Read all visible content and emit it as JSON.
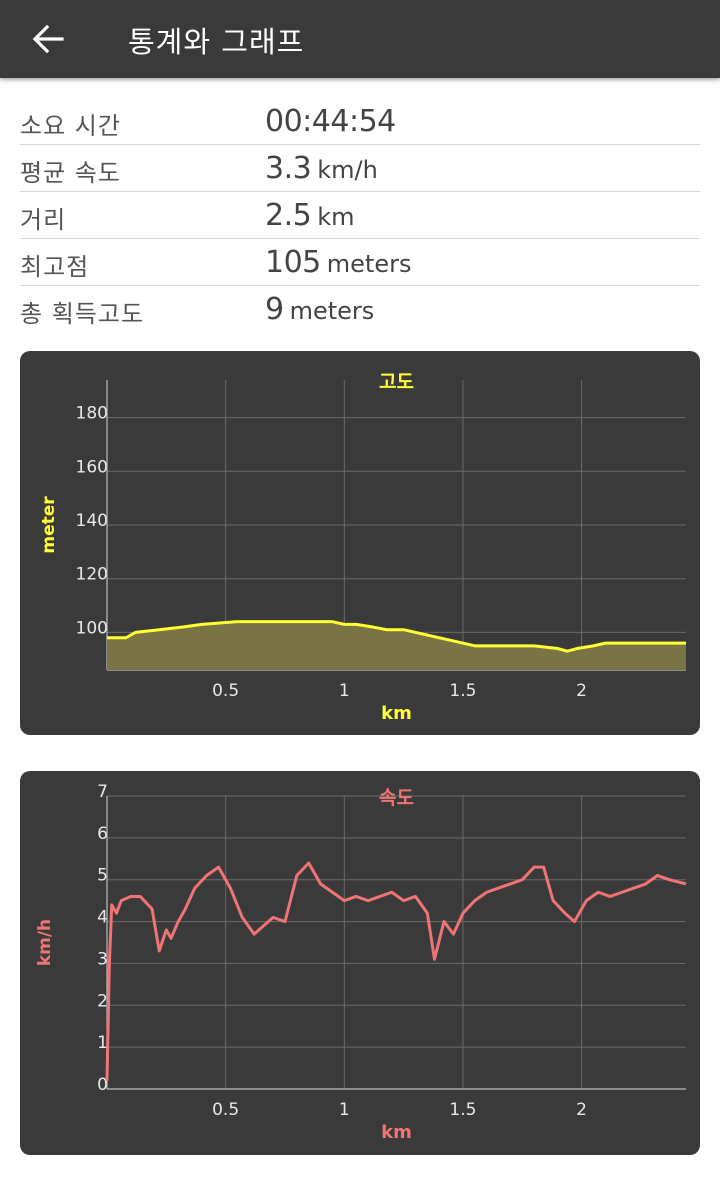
{
  "appbar": {
    "title": "통계와 그래프",
    "back_icon": "arrow-left-icon"
  },
  "stats": [
    {
      "label": "소요 시간",
      "value": "00:44:54",
      "unit": ""
    },
    {
      "label": "평균 속도",
      "value": "3.3",
      "unit": "km/h"
    },
    {
      "label": "거리",
      "value": "2.5",
      "unit": "km"
    },
    {
      "label": "최고점",
      "value": "105",
      "unit": "meters"
    },
    {
      "label": "총 획득고도",
      "value": "9",
      "unit": "meters"
    }
  ],
  "chart_data": [
    {
      "type": "area",
      "title": "고도",
      "xlabel": "km",
      "ylabel": "meter",
      "xlim": [
        0,
        2.44
      ],
      "ylim": [
        86,
        194
      ],
      "xticks": [
        "0.5",
        "1",
        "1.5",
        "2"
      ],
      "yticks": [
        "100",
        "120",
        "140",
        "160",
        "180"
      ],
      "grid": true,
      "color": "#ffff33",
      "fill": "#7a7346",
      "x": [
        0,
        0.08,
        0.12,
        0.22,
        0.32,
        0.4,
        0.55,
        0.7,
        0.8,
        0.95,
        1.0,
        1.05,
        1.12,
        1.18,
        1.25,
        1.35,
        1.45,
        1.55,
        1.6,
        1.7,
        1.8,
        1.9,
        1.94,
        1.98,
        2.05,
        2.1,
        2.2,
        2.3,
        2.44
      ],
      "y": [
        98,
        98,
        100,
        101,
        102,
        103,
        104,
        104,
        104,
        104,
        103,
        103,
        102,
        101,
        101,
        99,
        97,
        95,
        95,
        95,
        95,
        94,
        93,
        94,
        95,
        96,
        96,
        96,
        96
      ]
    },
    {
      "type": "line",
      "title": "속도",
      "xlabel": "km",
      "ylabel": "km/h",
      "xlim": [
        0,
        2.44
      ],
      "ylim": [
        0,
        7
      ],
      "xticks": [
        "0.5",
        "1",
        "1.5",
        "2"
      ],
      "yticks": [
        "0",
        "1",
        "2",
        "3",
        "4",
        "5",
        "6",
        "7"
      ],
      "grid": true,
      "color": "#f07474",
      "x": [
        0,
        0.01,
        0.02,
        0.04,
        0.06,
        0.1,
        0.14,
        0.19,
        0.22,
        0.25,
        0.27,
        0.3,
        0.33,
        0.37,
        0.42,
        0.47,
        0.52,
        0.57,
        0.62,
        0.66,
        0.7,
        0.75,
        0.8,
        0.85,
        0.9,
        0.95,
        1.0,
        1.05,
        1.1,
        1.15,
        1.2,
        1.25,
        1.3,
        1.35,
        1.38,
        1.42,
        1.46,
        1.5,
        1.55,
        1.6,
        1.65,
        1.7,
        1.75,
        1.8,
        1.84,
        1.88,
        1.93,
        1.97,
        2.02,
        2.07,
        2.12,
        2.17,
        2.22,
        2.27,
        2.32,
        2.37,
        2.44
      ],
      "y": [
        0.2,
        3.0,
        4.4,
        4.2,
        4.5,
        4.6,
        4.6,
        4.3,
        3.3,
        3.8,
        3.6,
        4.0,
        4.3,
        4.8,
        5.1,
        5.3,
        4.8,
        4.1,
        3.7,
        3.9,
        4.1,
        4.0,
        5.1,
        5.4,
        4.9,
        4.7,
        4.5,
        4.6,
        4.5,
        4.6,
        4.7,
        4.5,
        4.6,
        4.2,
        3.1,
        4.0,
        3.7,
        4.2,
        4.5,
        4.7,
        4.8,
        4.9,
        5.0,
        5.3,
        5.3,
        4.5,
        4.2,
        4.0,
        4.5,
        4.7,
        4.6,
        4.7,
        4.8,
        4.9,
        5.1,
        5.0,
        4.9
      ]
    }
  ]
}
